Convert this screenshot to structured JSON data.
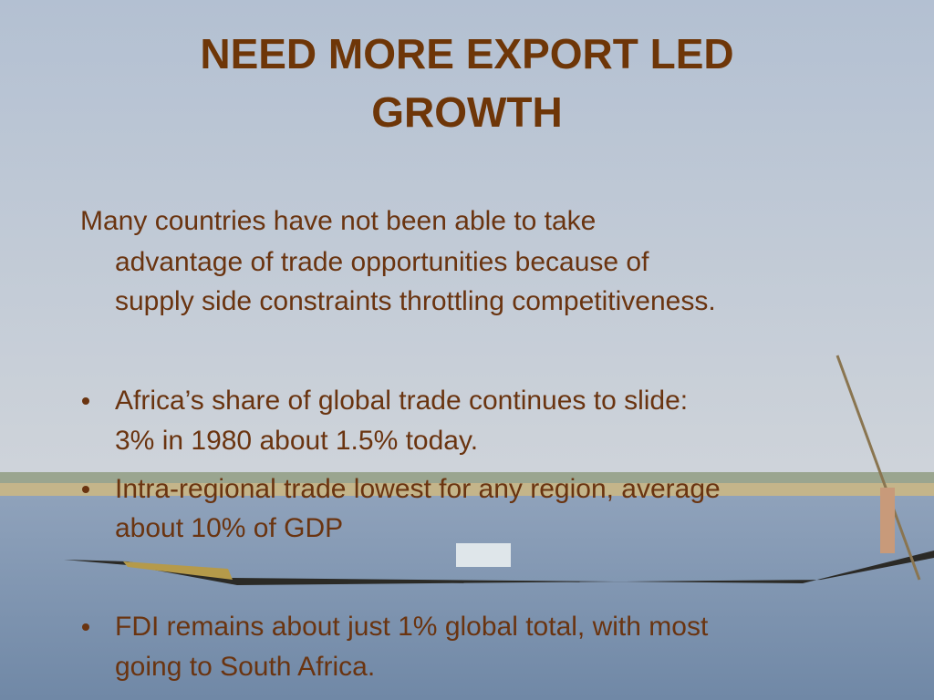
{
  "title": [
    "NEED MORE EXPORT LED",
    "GROWTH"
  ],
  "intro": [
    "Many countries have not been able to take",
    "advantage of trade opportunities because of",
    "supply side constraints throttling competitiveness."
  ],
  "bullets": [
    [
      "Africa’s share of global trade continues to slide:",
      "3% in 1980 about 1.5% today."
    ],
    [
      "Intra-regional trade lowest for any region, average",
      "about 10% of GDP"
    ],
    [
      "FDI remains about just 1% global total, with most",
      "going to South Africa."
    ]
  ]
}
